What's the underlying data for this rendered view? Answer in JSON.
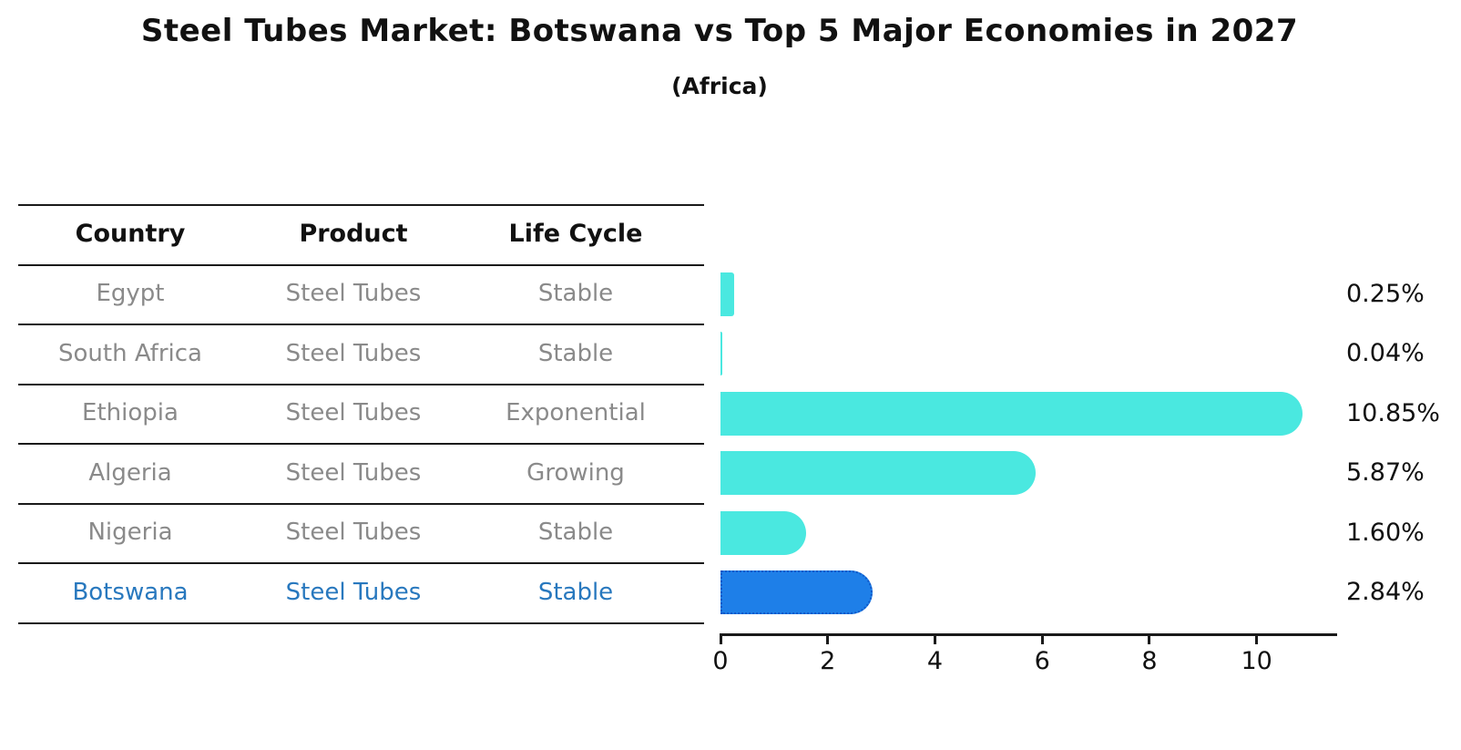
{
  "title": "Steel Tubes Market: Botswana vs Top 5 Major Economies in 2027",
  "subtitle": "(Africa)",
  "table": {
    "headers": [
      "Country",
      "Product",
      "Life Cycle"
    ],
    "rows": [
      {
        "country": "Egypt",
        "product": "Steel Tubes",
        "life_cycle": "Stable",
        "highlighted": false
      },
      {
        "country": "South Africa",
        "product": "Steel Tubes",
        "life_cycle": "Stable",
        "highlighted": false
      },
      {
        "country": "Ethiopia",
        "product": "Steel Tubes",
        "life_cycle": "Exponential",
        "highlighted": false
      },
      {
        "country": "Algeria",
        "product": "Steel Tubes",
        "life_cycle": "Growing",
        "highlighted": false
      },
      {
        "country": "Nigeria",
        "product": "Steel Tubes",
        "life_cycle": "Stable",
        "highlighted": false
      },
      {
        "country": "Botswana",
        "product": "Steel Tubes",
        "life_cycle": "Stable",
        "highlighted": true
      }
    ]
  },
  "chart_data": {
    "type": "bar",
    "orientation": "horizontal",
    "title": "Steel Tubes Market: Botswana vs Top 5 Major Economies in 2027",
    "subtitle": "(Africa)",
    "categories": [
      "Egypt",
      "South Africa",
      "Ethiopia",
      "Algeria",
      "Nigeria",
      "Botswana"
    ],
    "values": [
      0.25,
      0.04,
      10.85,
      5.87,
      1.6,
      2.84
    ],
    "value_labels": [
      "0.25%",
      "0.04%",
      "10.85%",
      "5.87%",
      "1.60%",
      "2.84%"
    ],
    "x_ticks": [
      "0",
      "2",
      "4",
      "6",
      "8",
      "10"
    ],
    "xlim": [
      0,
      11.5
    ],
    "grid": false,
    "legend": false,
    "highlight_index": 5
  },
  "colors": {
    "bar": "#4ae8e0",
    "highlight_bar": "#1e7fe8",
    "highlight_bar_border": "#1058c8",
    "highlight_text": "#2878be",
    "row_text": "#8a8a8a",
    "header_text": "#111111",
    "line": "#1a1a1a",
    "background": "#ffffff"
  }
}
